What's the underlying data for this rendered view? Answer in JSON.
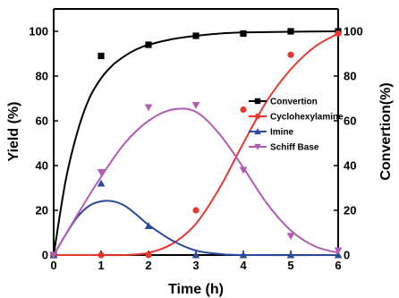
{
  "chart_data": {
    "type": "line",
    "xlabel": "Time (h)",
    "ylabel": "Yield (%)",
    "y2label": "Convertion(%)",
    "xlim": [
      0,
      6
    ],
    "ylim": [
      0,
      110
    ],
    "y2lim": [
      0,
      110
    ],
    "xticks": [
      0,
      1,
      2,
      3,
      4,
      5,
      6
    ],
    "yticks": [
      0,
      20,
      40,
      60,
      80,
      100
    ],
    "grid": false,
    "legend_position": "center-right",
    "series": [
      {
        "name": "Convertion",
        "axis": "right",
        "color": "#000000",
        "marker": "square",
        "x": [
          0,
          1,
          2,
          3,
          4,
          5,
          6
        ],
        "y": [
          0,
          89,
          94,
          98,
          99,
          100,
          100
        ],
        "fit": [
          [
            0,
            0
          ],
          [
            0.25,
            33
          ],
          [
            0.5,
            55
          ],
          [
            0.75,
            70
          ],
          [
            1,
            79
          ],
          [
            1.25,
            85
          ],
          [
            1.5,
            89
          ],
          [
            1.75,
            92
          ],
          [
            2,
            94
          ],
          [
            2.5,
            96.5
          ],
          [
            3,
            98
          ],
          [
            3.5,
            99
          ],
          [
            4,
            99.5
          ],
          [
            5,
            99.8
          ],
          [
            6,
            100
          ]
        ]
      },
      {
        "name": "Cyclohexylamine",
        "axis": "left",
        "color": "#e8382e",
        "marker": "circle",
        "x": [
          0,
          1,
          2,
          3,
          4,
          5,
          6
        ],
        "y": [
          0,
          0,
          0,
          20,
          65,
          89.5,
          99
        ],
        "fit": [
          [
            0,
            0
          ],
          [
            1,
            0
          ],
          [
            1.5,
            0
          ],
          [
            2,
            1
          ],
          [
            2.5,
            5
          ],
          [
            3,
            14
          ],
          [
            3.5,
            30
          ],
          [
            4,
            50
          ],
          [
            4.5,
            69
          ],
          [
            5,
            83
          ],
          [
            5.5,
            93
          ],
          [
            6,
            99
          ]
        ]
      },
      {
        "name": "Imine",
        "axis": "left",
        "color": "#2c4a9e",
        "marker": "triangle-up",
        "x": [
          0,
          1,
          2,
          3,
          4,
          5,
          6
        ],
        "y": [
          0,
          32,
          13,
          0,
          0,
          0,
          0
        ],
        "fit": [
          [
            0,
            0
          ],
          [
            0.25,
            9
          ],
          [
            0.5,
            17
          ],
          [
            0.75,
            22
          ],
          [
            1,
            24
          ],
          [
            1.25,
            24
          ],
          [
            1.5,
            22
          ],
          [
            1.75,
            18
          ],
          [
            2,
            13.5
          ],
          [
            2.5,
            6.5
          ],
          [
            3,
            2
          ],
          [
            3.5,
            0.5
          ],
          [
            4,
            0
          ],
          [
            6,
            0
          ]
        ]
      },
      {
        "name": "Schiff Base",
        "axis": "left",
        "color": "#b05cb3",
        "marker": "triangle-down",
        "x": [
          0,
          1,
          2,
          3,
          4,
          5,
          6
        ],
        "y": [
          0,
          37,
          66,
          67,
          38,
          8.5,
          2
        ],
        "fit": [
          [
            0,
            0
          ],
          [
            0.5,
            18
          ],
          [
            1,
            35
          ],
          [
            1.5,
            50
          ],
          [
            2,
            60
          ],
          [
            2.5,
            65
          ],
          [
            3,
            64
          ],
          [
            3.5,
            54
          ],
          [
            4,
            39
          ],
          [
            4.5,
            23
          ],
          [
            5,
            11
          ],
          [
            5.5,
            4
          ],
          [
            6,
            1
          ]
        ]
      }
    ]
  }
}
